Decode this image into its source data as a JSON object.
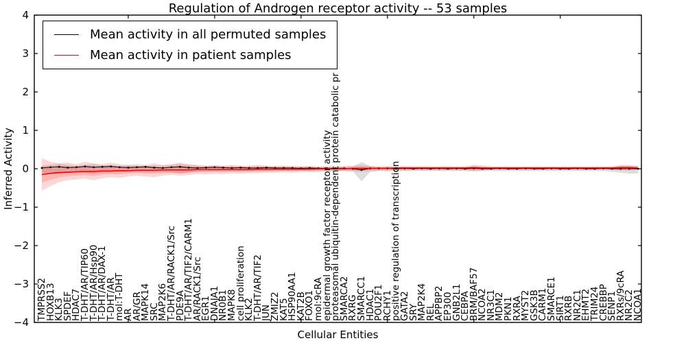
{
  "figure": {
    "title": "Regulation of Androgen receptor activity -- 53 samples",
    "xlabel": "Cellular Entities",
    "ylabel": "Inferred Activity"
  },
  "legend": {
    "entries": [
      {
        "label": "Mean activity in all permuted samples",
        "color": "#000000"
      },
      {
        "label": "Mean activity in patient samples",
        "color": "#ff0000"
      }
    ]
  },
  "chart_data": {
    "type": "line",
    "title": "Regulation of Androgen receptor activity -- 53 samples",
    "xlabel": "Cellular Entities",
    "ylabel": "Inferred Activity",
    "ylim": [
      -4,
      4
    ],
    "yticks": [
      4,
      3,
      2,
      1,
      0,
      -1,
      -2,
      -3,
      -4
    ],
    "grid": false,
    "legend_position": "upper left",
    "colors": {
      "permuted_line": "#000000",
      "patient_line": "#ff0000",
      "permuted_band": "rgba(0,0,0,0.13)",
      "patient_band": "rgba(255,0,0,0.16)"
    },
    "categories": [
      "TMPRSS2",
      "HOXB13",
      "KLK3",
      "SPDEF",
      "HDAC7",
      "T-DHT/AR/TIP60",
      "T-DHT/AR/Hsp90",
      "T-DHT/AR/DAX-1",
      "T-DHT/AR",
      "mol:T-DHT",
      "AR",
      "AR/GR",
      "MAPK14",
      "SRC",
      "MAP2K6",
      "T-DHT/AR/RACK1/Src",
      "PDE9A",
      "T-DHT/AR/TIF2/CARM1",
      "AR/RACK1/Src",
      "EGR1",
      "DNAJA1",
      "NR0B1",
      "MAPK8",
      "cell proliferation",
      "KLK2",
      "T-DHT/AR/TIF2",
      "JUN",
      "ZMIZ2",
      "KAT5",
      "HSP90AA1",
      "KAT2B",
      "FOXO1",
      "mol:9cRA",
      "epidermal growth factor receptor activity",
      "proteasomal ubiquitin-dependent protein catabolic pr",
      "SMARCA2",
      "RXRG",
      "SMARCC1",
      "HDAC1",
      "POU2F1",
      "RCHY1",
      "positive regulation of transcription",
      "GATA2",
      "SRY",
      "MAP2K4",
      "REL",
      "APPBP2",
      "EP300",
      "GNB2L1",
      "CEBPA",
      "BRM/BAF57",
      "NCOA2",
      "NR3C1",
      "MDM2",
      "PKN1",
      "RXRA",
      "MYST2",
      "GSK3B",
      "CARM1",
      "SMARCE1",
      "SIRT1",
      "RXRB",
      "NR2C1",
      "EHMT2",
      "TRIM24",
      "CREBBP",
      "SENP1",
      "RXRs/9cRA",
      "NR2C2",
      "NCOA1"
    ],
    "series": [
      {
        "name": "Mean activity in all permuted samples",
        "color": "#000000",
        "style": "dotted-with-markers",
        "values": [
          0.02,
          0.04,
          0.05,
          0.03,
          0.04,
          0.06,
          0.04,
          0.05,
          0.06,
          0.04,
          0.03,
          0.04,
          0.05,
          0.03,
          0.02,
          0.04,
          0.05,
          0.03,
          0.02,
          0.03,
          0.04,
          0.03,
          0.02,
          0.03,
          0.02,
          0.02,
          0.03,
          0.02,
          0.02,
          0.02,
          0.01,
          0.02,
          0.01,
          0.01,
          0.01,
          0.01,
          0.0,
          -0.03,
          0.01,
          0.01,
          0.01,
          0.0,
          0.01,
          0.0,
          0.01,
          0.0,
          0.01,
          0.0,
          0.01,
          0.0,
          0.01,
          0.0,
          0.0,
          0.01,
          0.0,
          0.0,
          0.01,
          0.0,
          0.0,
          0.01,
          0.0,
          0.0,
          0.01,
          0.0,
          0.0,
          0.01,
          0.0,
          0.0,
          0.0,
          0.0
        ]
      },
      {
        "name": "Mean activity in patient samples",
        "color": "#ff0000",
        "style": "solid",
        "values": [
          -0.15,
          -0.12,
          -0.1,
          -0.09,
          -0.08,
          -0.07,
          -0.07,
          -0.06,
          -0.06,
          -0.05,
          -0.05,
          -0.04,
          -0.04,
          -0.04,
          -0.03,
          -0.03,
          -0.03,
          -0.03,
          -0.02,
          -0.02,
          -0.02,
          -0.02,
          -0.02,
          -0.02,
          -0.02,
          -0.01,
          -0.01,
          -0.01,
          -0.01,
          -0.01,
          -0.01,
          -0.01,
          0.0,
          0.0,
          0.0,
          0.0,
          0.01,
          0.01,
          0.01,
          0.01,
          0.01,
          0.02,
          0.02,
          0.02,
          0.02,
          0.02,
          0.02,
          0.02,
          0.02,
          0.02,
          0.03,
          0.02,
          0.02,
          0.02,
          0.02,
          0.02,
          0.02,
          0.02,
          0.02,
          0.02,
          0.02,
          0.02,
          0.02,
          0.02,
          0.02,
          0.02,
          0.02,
          0.03,
          0.03,
          0.02
        ]
      }
    ],
    "bands": [
      {
        "name": "permuted-band",
        "color": "rgba(0,0,0,0.13)",
        "upper": [
          0.08,
          0.1,
          0.13,
          0.1,
          0.08,
          0.1,
          0.12,
          0.09,
          0.1,
          0.08,
          0.09,
          0.08,
          0.08,
          0.09,
          0.08,
          0.1,
          0.13,
          0.1,
          0.08,
          0.07,
          0.07,
          0.06,
          0.07,
          0.06,
          0.06,
          0.07,
          0.06,
          0.06,
          0.06,
          0.06,
          0.06,
          0.06,
          0.05,
          0.05,
          0.05,
          0.06,
          0.06,
          0.17,
          0.07,
          0.05,
          0.05,
          0.05,
          0.05,
          0.05,
          0.05,
          0.05,
          0.05,
          0.05,
          0.05,
          0.05,
          0.06,
          0.05,
          0.05,
          0.05,
          0.05,
          0.05,
          0.05,
          0.05,
          0.05,
          0.05,
          0.05,
          0.05,
          0.05,
          0.05,
          0.05,
          0.05,
          0.06,
          0.07,
          0.08,
          0.08
        ],
        "lower": [
          -0.1,
          -0.12,
          -0.14,
          -0.11,
          -0.09,
          -0.11,
          -0.13,
          -0.1,
          -0.1,
          -0.09,
          -0.09,
          -0.08,
          -0.08,
          -0.09,
          -0.08,
          -0.1,
          -0.13,
          -0.1,
          -0.08,
          -0.07,
          -0.07,
          -0.07,
          -0.07,
          -0.07,
          -0.07,
          -0.07,
          -0.07,
          -0.06,
          -0.06,
          -0.06,
          -0.06,
          -0.06,
          -0.06,
          -0.06,
          -0.06,
          -0.06,
          -0.07,
          -0.33,
          -0.08,
          -0.06,
          -0.06,
          -0.06,
          -0.06,
          -0.06,
          -0.06,
          -0.06,
          -0.06,
          -0.06,
          -0.06,
          -0.06,
          -0.07,
          -0.06,
          -0.06,
          -0.06,
          -0.06,
          -0.06,
          -0.06,
          -0.06,
          -0.06,
          -0.06,
          -0.06,
          -0.06,
          -0.06,
          -0.06,
          -0.06,
          -0.06,
          -0.08,
          -0.1,
          -0.13,
          -0.12
        ]
      },
      {
        "name": "patient-band",
        "color": "rgba(255,0,0,0.16)",
        "upper": [
          0.28,
          0.18,
          0.14,
          0.16,
          0.12,
          0.18,
          0.14,
          0.12,
          0.16,
          0.12,
          0.1,
          0.12,
          0.1,
          0.14,
          0.1,
          0.12,
          0.16,
          0.12,
          0.1,
          0.08,
          0.1,
          0.08,
          0.1,
          0.08,
          0.08,
          0.1,
          0.08,
          0.07,
          0.08,
          0.07,
          0.06,
          0.07,
          0.06,
          0.06,
          0.06,
          0.07,
          0.08,
          0.09,
          0.07,
          0.06,
          0.07,
          0.06,
          0.07,
          0.06,
          0.07,
          0.06,
          0.06,
          0.07,
          0.06,
          0.06,
          0.1,
          0.09,
          0.06,
          0.06,
          0.06,
          0.06,
          0.06,
          0.06,
          0.06,
          0.06,
          0.06,
          0.06,
          0.06,
          0.06,
          0.06,
          0.06,
          0.06,
          0.1,
          0.09,
          0.07
        ],
        "lower": [
          -0.57,
          -0.45,
          -0.35,
          -0.3,
          -0.28,
          -0.26,
          -0.3,
          -0.25,
          -0.22,
          -0.24,
          -0.2,
          -0.18,
          -0.2,
          -0.22,
          -0.18,
          -0.16,
          -0.18,
          -0.16,
          -0.14,
          -0.15,
          -0.13,
          -0.14,
          -0.12,
          -0.13,
          -0.11,
          -0.12,
          -0.1,
          -0.11,
          -0.09,
          -0.1,
          -0.08,
          -0.09,
          -0.08,
          -0.07,
          -0.07,
          -0.06,
          -0.07,
          -0.08,
          -0.06,
          -0.05,
          -0.05,
          -0.04,
          -0.05,
          -0.04,
          -0.04,
          -0.04,
          -0.04,
          -0.04,
          -0.04,
          -0.04,
          -0.06,
          -0.05,
          -0.03,
          -0.03,
          -0.03,
          -0.03,
          -0.03,
          -0.03,
          -0.03,
          -0.03,
          -0.03,
          -0.03,
          -0.03,
          -0.03,
          -0.03,
          -0.03,
          -0.03,
          -0.05,
          -0.05,
          -0.03
        ]
      }
    ]
  }
}
